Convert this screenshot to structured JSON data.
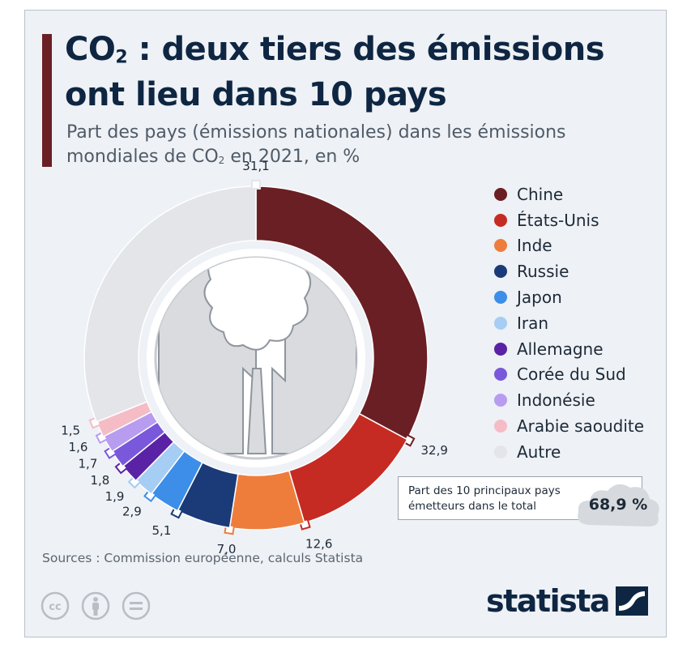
{
  "title_line1_a": "CO",
  "title_line1_sub": "2",
  "title_line1_b": " : deux tiers des émissions",
  "title_line2": "ont lieu dans 10 pays",
  "subtitle_line1": "Part des pays (émissions nationales) dans les émissions",
  "subtitle_line2_a": "mondiales de CO",
  "subtitle_line2_sub": "2",
  "subtitle_line2_b": " en 2021, en %",
  "chart_data": {
    "type": "pie",
    "variant": "donut",
    "categories": [
      "Chine",
      "États-Unis",
      "Inde",
      "Russie",
      "Japon",
      "Iran",
      "Allemagne",
      "Corée du Sud",
      "Indonésie",
      "Arabie saoudite",
      "Autre"
    ],
    "values": [
      32.9,
      12.6,
      7.0,
      5.1,
      2.9,
      1.9,
      1.8,
      1.7,
      1.6,
      1.5,
      31.1
    ],
    "value_labels": [
      "32,9",
      "12,6",
      "7,0",
      "5,1",
      "2,9",
      "1,9",
      "1,8",
      "1,7",
      "1,6",
      "1,5",
      "31,1"
    ],
    "colors": [
      "#6a1f24",
      "#c52b22",
      "#ee7d3c",
      "#1a3b78",
      "#3c8ee8",
      "#a6cdf3",
      "#5a23a6",
      "#7a58dc",
      "#b79cf0",
      "#f5bcc6",
      "#e3e5e8"
    ],
    "legend_position": "right",
    "center_image": "factory-smoke-illustration"
  },
  "total_label": "Part des 10 principaux pays émetteurs dans le total",
  "total_value": "68,9 %",
  "sources": "Sources : Commission européenne, calculs Statista",
  "license_icons": [
    "cc-icon",
    "attribution-icon",
    "no-derivatives-icon"
  ],
  "brand": "statista"
}
